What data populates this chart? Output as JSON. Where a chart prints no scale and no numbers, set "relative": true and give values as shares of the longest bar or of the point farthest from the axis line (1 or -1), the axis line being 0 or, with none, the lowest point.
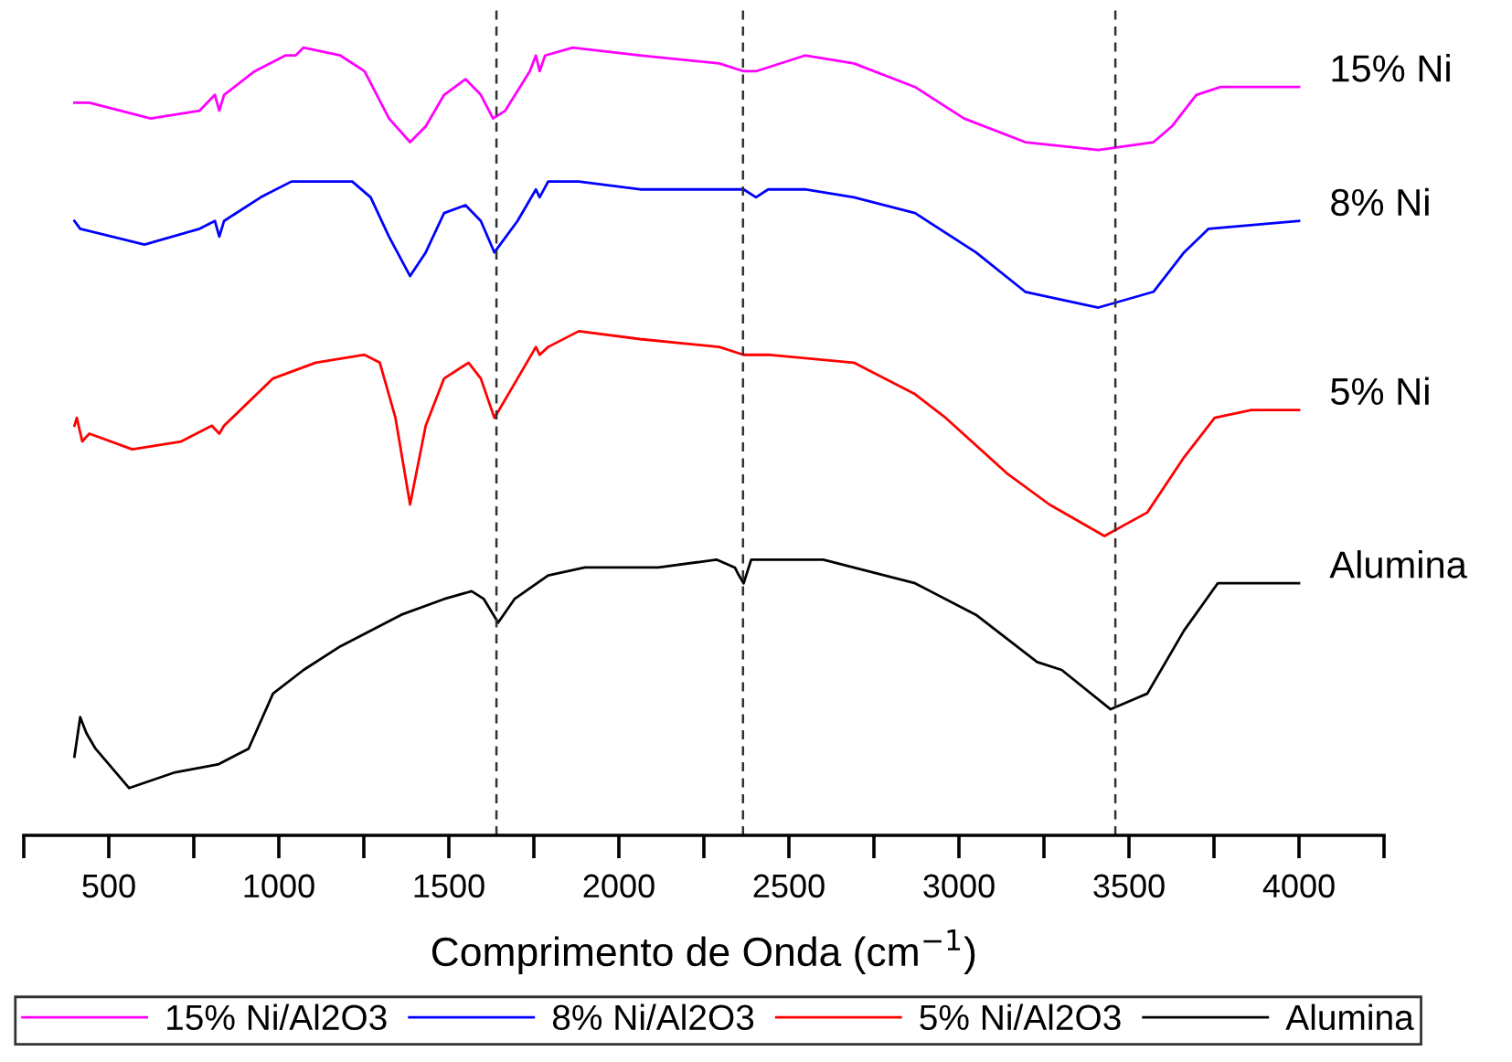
{
  "chart_data": {
    "type": "line",
    "relative": true,
    "xlabel": "Comprimento de Onda (cm$^{−1}$)",
    "xlim": [
      250,
      4250
    ],
    "xticks": [
      {
        "value": 250,
        "label": null
      },
      500,
      {
        "value": 750,
        "label": null
      },
      1000,
      {
        "value": 1250,
        "label": null
      },
      1500,
      {
        "value": 1750,
        "label": null
      },
      2000,
      {
        "value": 2250,
        "label": null
      },
      2500,
      {
        "value": 2750,
        "label": null
      },
      3000,
      {
        "value": 3250,
        "label": null
      },
      3500,
      {
        "value": 3750,
        "label": null
      },
      4000,
      {
        "value": 4250,
        "label": null
      }
    ],
    "grid": false,
    "legend": "bottom",
    "marker": "none",
    "line_style": "solid",
    "ref_lines": [
      {
        "axis": "x",
        "value": 1640,
        "color": "#333333",
        "line_style": "dashed"
      },
      {
        "axis": "x",
        "value": 2365,
        "color": "#333333",
        "line_style": "dashed"
      },
      {
        "axis": "x",
        "value": 3460,
        "color": "#333333",
        "line_style": "dashed"
      }
    ],
    "series": [
      {
        "name": "15% Ni/Al2O3",
        "color": "#ff00ff",
        "x": [
          399,
          443,
          623,
          767,
          812,
          825,
          839,
          929,
          1019,
          1049,
          1073,
          1181,
          1252,
          1324,
          1386,
          1432,
          1486,
          1549,
          1594,
          1630,
          1666,
          1738,
          1756,
          1767,
          1783,
          1864,
          2062,
          2295,
          2367,
          2403,
          2547,
          2691,
          2871,
          3015,
          3195,
          3410,
          3572,
          3626,
          3698,
          3770,
          4000
        ],
        "values": [
          0.93,
          0.93,
          0.91,
          0.92,
          0.94,
          0.92,
          0.94,
          0.97,
          0.99,
          0.99,
          1.0,
          0.99,
          0.97,
          0.91,
          0.88,
          0.9,
          0.94,
          0.96,
          0.94,
          0.91,
          0.92,
          0.97,
          0.99,
          0.97,
          0.99,
          1.0,
          0.99,
          0.98,
          0.97,
          0.97,
          0.99,
          0.98,
          0.95,
          0.91,
          0.88,
          0.87,
          0.88,
          0.9,
          0.94,
          0.95,
          0.95
        ]
      },
      {
        "name": "8% Ni/Al2O3",
        "color": "#0000ff",
        "x": [
          399,
          416,
          605,
          767,
          812,
          825,
          839,
          947,
          1037,
          1073,
          1216,
          1270,
          1324,
          1386,
          1432,
          1486,
          1549,
          1594,
          1634,
          1702,
          1756,
          1767,
          1792,
          1882,
          2062,
          2367,
          2403,
          2439,
          2547,
          2691,
          2871,
          3050,
          3195,
          3410,
          3572,
          3662,
          3734,
          4000
        ],
        "values": [
          0.78,
          0.77,
          0.75,
          0.77,
          0.78,
          0.76,
          0.78,
          0.81,
          0.83,
          0.83,
          0.83,
          0.81,
          0.76,
          0.71,
          0.74,
          0.79,
          0.8,
          0.78,
          0.74,
          0.78,
          0.82,
          0.81,
          0.83,
          0.83,
          0.82,
          0.82,
          0.81,
          0.82,
          0.82,
          0.81,
          0.79,
          0.74,
          0.69,
          0.67,
          0.69,
          0.74,
          0.77,
          0.78
        ]
      },
      {
        "name": "5% Ni/Al2O3",
        "color": "#ff0000",
        "x": [
          399,
          406,
          422,
          443,
          569,
          713,
          803,
          825,
          839,
          983,
          1108,
          1252,
          1297,
          1343,
          1386,
          1432,
          1486,
          1558,
          1594,
          1634,
          1702,
          1756,
          1767,
          1792,
          1882,
          2062,
          2295,
          2367,
          2439,
          2691,
          2871,
          2961,
          3140,
          3266,
          3428,
          3554,
          3662,
          3752,
          3860,
          4000
        ],
        "values": [
          0.52,
          0.53,
          0.5,
          0.51,
          0.49,
          0.5,
          0.52,
          0.51,
          0.52,
          0.58,
          0.6,
          0.61,
          0.6,
          0.53,
          0.42,
          0.52,
          0.58,
          0.6,
          0.58,
          0.53,
          0.58,
          0.62,
          0.61,
          0.62,
          0.64,
          0.63,
          0.62,
          0.61,
          0.61,
          0.6,
          0.56,
          0.53,
          0.46,
          0.42,
          0.38,
          0.41,
          0.48,
          0.53,
          0.54,
          0.54
        ]
      },
      {
        "name": "Alumina",
        "color": "#000000",
        "x": [
          399,
          416,
          434,
          461,
          560,
          695,
          821,
          911,
          983,
          1073,
          1181,
          1360,
          1486,
          1567,
          1603,
          1645,
          1693,
          1792,
          1900,
          2116,
          2287,
          2341,
          2353,
          2367,
          2389,
          2403,
          2601,
          2871,
          3050,
          3230,
          3302,
          3446,
          3554,
          3662,
          3761,
          4000
        ],
        "values": [
          0.1,
          0.15,
          0.13,
          0.11,
          0.06,
          0.08,
          0.09,
          0.11,
          0.18,
          0.21,
          0.24,
          0.28,
          0.3,
          0.31,
          0.3,
          0.27,
          0.3,
          0.33,
          0.34,
          0.34,
          0.35,
          0.34,
          0.33,
          0.32,
          0.35,
          0.35,
          0.35,
          0.32,
          0.28,
          0.22,
          0.21,
          0.16,
          0.18,
          0.26,
          0.32,
          0.32
        ]
      }
    ],
    "annotations": [
      "15% Ni",
      "8% Ni",
      "5% Ni",
      "Alumina"
    ]
  }
}
